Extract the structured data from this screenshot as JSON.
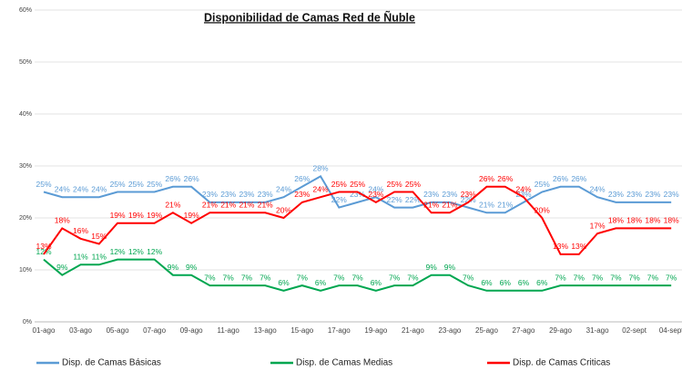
{
  "chart_data": {
    "type": "line",
    "title": "Disponibilidad de Camas Red de Ñuble",
    "categories": [
      "01-ago",
      null,
      "03-ago",
      null,
      "05-ago",
      null,
      "07-ago",
      null,
      "09-ago",
      null,
      "11-ago",
      null,
      "13-ago",
      null,
      "15-ago",
      null,
      "17-ago",
      null,
      "19-ago",
      null,
      "21-ago",
      null,
      "23-ago",
      null,
      "25-ago",
      null,
      "27-ago",
      null,
      "29-ago",
      null,
      "31-ago",
      null,
      "02-sept",
      null,
      "04-sept"
    ],
    "series": [
      {
        "name": "Disp. de Camas Básicas",
        "color": "#5b9bd5",
        "values": [
          25,
          24,
          24,
          24,
          25,
          25,
          25,
          26,
          26,
          23,
          23,
          23,
          23,
          24,
          26,
          28,
          22,
          23,
          24,
          22,
          22,
          23,
          23,
          22,
          21,
          21,
          23,
          25,
          26,
          26,
          24,
          23,
          23,
          23,
          23
        ],
        "value_labels": [
          "25%",
          "24%",
          "24%",
          "24%",
          "25%",
          "25%",
          "25%",
          "26%",
          "26%",
          "23%",
          "23%",
          "23%",
          "23%",
          "24%",
          "26%",
          "28%",
          "22%",
          "23%",
          "24%",
          "22%",
          "22%",
          "23%",
          "23%",
          "22%",
          "21%",
          "21%",
          "23%",
          "25%",
          "26%",
          "26%",
          "24%",
          "23%",
          "23%",
          "23%",
          "23%"
        ]
      },
      {
        "name": "Disp. de Camas Medias",
        "color": "#00a650",
        "values": [
          12,
          9,
          11,
          11,
          12,
          12,
          12,
          9,
          9,
          7,
          7,
          7,
          7,
          6,
          7,
          6,
          7,
          7,
          6,
          7,
          7,
          9,
          9,
          7,
          6,
          6,
          6,
          6,
          7,
          7,
          7,
          7,
          7,
          7,
          7
        ],
        "value_labels": [
          "12%",
          "9%",
          "11%",
          "11%",
          "12%",
          "12%",
          "12%",
          "9%",
          "9%",
          "7%",
          "7%",
          "7%",
          "7%",
          "6%",
          "7%",
          "6%",
          "7%",
          "7%",
          "6%",
          "7%",
          "7%",
          "9%",
          "9%",
          "7%",
          "6%",
          "6%",
          "6%",
          "6%",
          "7%",
          "7%",
          "7%",
          "7%",
          "7%",
          "7%",
          "7%"
        ]
      },
      {
        "name": "Disp. de Camas Criticas",
        "color": "#ff0000",
        "values": [
          13,
          18,
          16,
          15,
          19,
          19,
          19,
          21,
          19,
          21,
          21,
          21,
          21,
          20,
          23,
          24,
          25,
          25,
          23,
          25,
          25,
          21,
          21,
          23,
          26,
          26,
          24,
          20,
          13,
          13,
          17,
          18,
          18,
          18,
          18
        ],
        "value_labels": [
          "13%",
          "18%",
          "16%",
          "15%",
          "19%",
          "19%",
          "19%",
          "21%",
          "19%",
          "21%",
          "21%",
          "21%",
          "21%",
          "20%",
          "23%",
          "24%",
          "25%",
          "25%",
          "23%",
          "25%",
          "25%",
          "21%",
          "21%",
          "23%",
          "26%",
          "26%",
          "24%",
          "20%",
          "13%",
          "13%",
          "17%",
          "18%",
          "18%",
          "18%",
          "18%"
        ]
      }
    ],
    "ylim": [
      0,
      60
    ],
    "yticks": [
      {
        "value": 0,
        "label": "0%"
      },
      {
        "value": 10,
        "label": "10%"
      },
      {
        "value": 20,
        "label": "20%"
      },
      {
        "value": 30,
        "label": "30%"
      },
      {
        "value": 40,
        "label": "40%"
      },
      {
        "value": 50,
        "label": "50%"
      },
      {
        "value": 60,
        "label": "60%"
      }
    ],
    "grid": true,
    "legend": "bottom"
  }
}
